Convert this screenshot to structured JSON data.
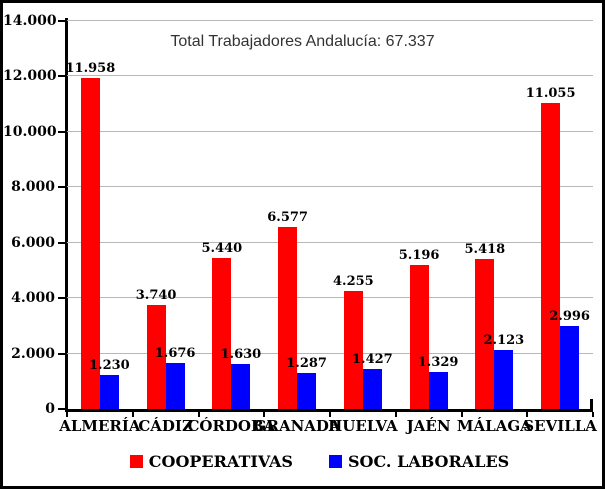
{
  "title": "Total Trabajadores Andalucía: 67.337",
  "colors": {
    "cooperativas": "#FF0000",
    "soc_laborales": "#0000FF",
    "gridline": "#B8B8B8",
    "axis": "#000000",
    "background": "#FFFFFF",
    "border": "#000000"
  },
  "y_axis": {
    "min": 0,
    "max": 14000,
    "step": 2000,
    "ticks": [
      "14.000",
      "12.000",
      "10.000",
      "8.000",
      "6.000",
      "4.000",
      "2.000",
      "0"
    ]
  },
  "legend": [
    {
      "label": "COOPERATIVAS",
      "color": "#FF0000"
    },
    {
      "label": "SOC. LABORALES",
      "color": "#0000FF"
    }
  ],
  "chart_data": {
    "type": "bar",
    "title": "Total Trabajadores Andalucía: 67.337",
    "categories": [
      "ALMERÍA",
      "CÁDIZ",
      "CÓRDOBA",
      "GRANADA",
      "HUELVA",
      "JAÉN",
      "MÁLAGA",
      "SEVILLA"
    ],
    "series": [
      {
        "name": "COOPERATIVAS",
        "key": "cooperativas",
        "color": "#FF0000",
        "values": [
          11958,
          3740,
          5440,
          6577,
          4255,
          5196,
          5418,
          11055
        ],
        "labels": [
          "11.958",
          "3.740",
          "5.440",
          "6.577",
          "4.255",
          "5.196",
          "5.418",
          "11.055"
        ]
      },
      {
        "name": "SOC. LABORALES",
        "key": "soc-laborales",
        "color": "#0000FF",
        "values": [
          1230,
          1676,
          1630,
          1287,
          1427,
          1329,
          2123,
          2996
        ],
        "labels": [
          "1.230",
          "1.676",
          "1.630",
          "1.287",
          "1.427",
          "1.329",
          "2.123",
          "2.996"
        ]
      }
    ],
    "ylim": [
      0,
      14000
    ],
    "grid": true,
    "legend_position": "bottom",
    "annotation": "Total Trabajadores Andalucía: 67.337"
  }
}
